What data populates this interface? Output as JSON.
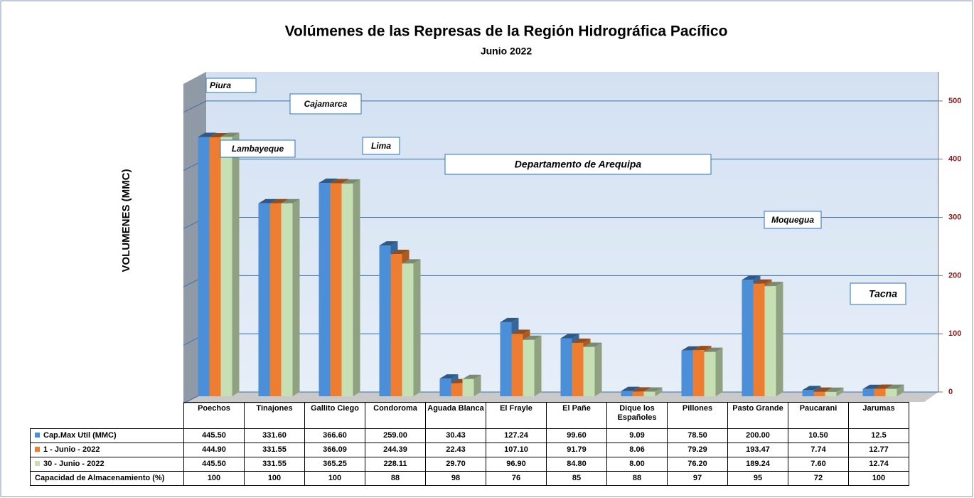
{
  "chart_data": {
    "type": "bar3d",
    "title": "Volúmenes de las Represas de la Región Hidrográfica Pacífico",
    "subtitle": "Junio 2022",
    "y_label": "VOLUMENES (MMC)",
    "categories": [
      "Poechos",
      "Tinajones",
      "Gallito Ciego",
      "Condoroma",
      "Aguada Blanca",
      "El Frayle",
      "El Pañe",
      "Dique los Españoles",
      "Pillones",
      "Pasto Grande",
      "Paucarani",
      "Jarumas"
    ],
    "series": [
      {
        "name": "Cap.Max Util (MMC)",
        "color": "#4a8fd8",
        "values": [
          445.5,
          331.6,
          366.6,
          259,
          30.43,
          127.24,
          99.6,
          9.09,
          78.5,
          200,
          10.5,
          12.5
        ],
        "value_labels": [
          "445.50",
          "331.60",
          "366.60",
          "259.00",
          "30.43",
          "127.24",
          "99.60",
          "9.09",
          "78.50",
          "200.00",
          "10.50",
          "12.5"
        ]
      },
      {
        "name": "1 - Junio - 2022",
        "color": "#ed7d31",
        "values": [
          444.9,
          331.55,
          366.09,
          244.39,
          22.43,
          107.1,
          91.79,
          8.06,
          79.29,
          193.47,
          7.74,
          12.77
        ],
        "value_labels": [
          "444.90",
          "331.55",
          "366.09",
          "244.39",
          "22.43",
          "107.10",
          "91.79",
          "8.06",
          "79.29",
          "193.47",
          "7.74",
          "12.77"
        ]
      },
      {
        "name": "30 - Junio - 2022",
        "color": "#c6dfb3",
        "values": [
          445.5,
          331.55,
          365.25,
          228.11,
          29.7,
          96.9,
          84.8,
          8,
          76.2,
          189.24,
          7.6,
          12.74
        ],
        "value_labels": [
          "445.50",
          "331.55",
          "365.25",
          "228.11",
          "29.70",
          "96.90",
          "84.80",
          "8.00",
          "76.20",
          "189.24",
          "7.60",
          "12.74"
        ]
      }
    ],
    "capacity": {
      "name": "Capacidad de Almacenamiento  (%)",
      "values": [
        100,
        100,
        100,
        88,
        98,
        76,
        85,
        88,
        97,
        95,
        72,
        100
      ]
    },
    "ylim": [
      0,
      550
    ],
    "yticks": [
      0,
      100,
      200,
      300,
      400,
      500
    ],
    "grid": true,
    "y_axis_side": "right",
    "annotations": [
      "Piura",
      "Cajamarca",
      "Lambayeque",
      "Lima",
      "Departamento de Arequipa",
      "Moquegua",
      "Tacna"
    ]
  }
}
